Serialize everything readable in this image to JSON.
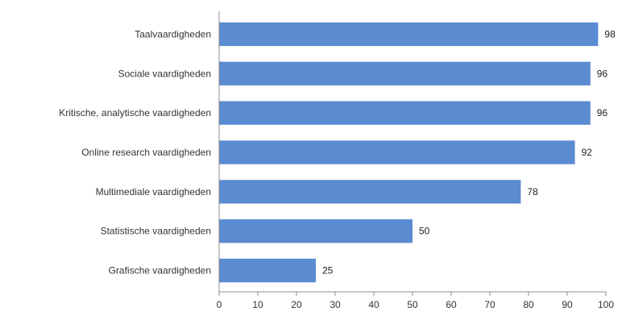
{
  "chart_data": {
    "type": "bar",
    "orientation": "horizontal",
    "categories": [
      "Taalvaardigheden",
      "Sociale vaardigheden",
      "Kritische, analytische vaardigheden",
      "Online research vaardigheden",
      "Multimediale vaardigheden",
      "Statistische vaardigheden",
      "Grafische vaardigheden"
    ],
    "values": [
      98,
      96,
      96,
      92,
      78,
      50,
      25
    ],
    "value_labels": [
      "98",
      "96",
      "96",
      "92",
      "78",
      "50",
      "25"
    ],
    "xlim": [
      0,
      100
    ],
    "xticks": [
      0,
      10,
      20,
      30,
      40,
      50,
      60,
      70,
      80,
      90,
      100
    ],
    "xtick_labels": [
      "0",
      "10",
      "20",
      "30",
      "40",
      "50",
      "60",
      "70",
      "80",
      "90",
      "100"
    ],
    "title": "",
    "xlabel": "",
    "ylabel": "",
    "grid": false,
    "legend": "none",
    "bar_color": "#5b8bd1",
    "axis_color": "#8c8c8c"
  }
}
